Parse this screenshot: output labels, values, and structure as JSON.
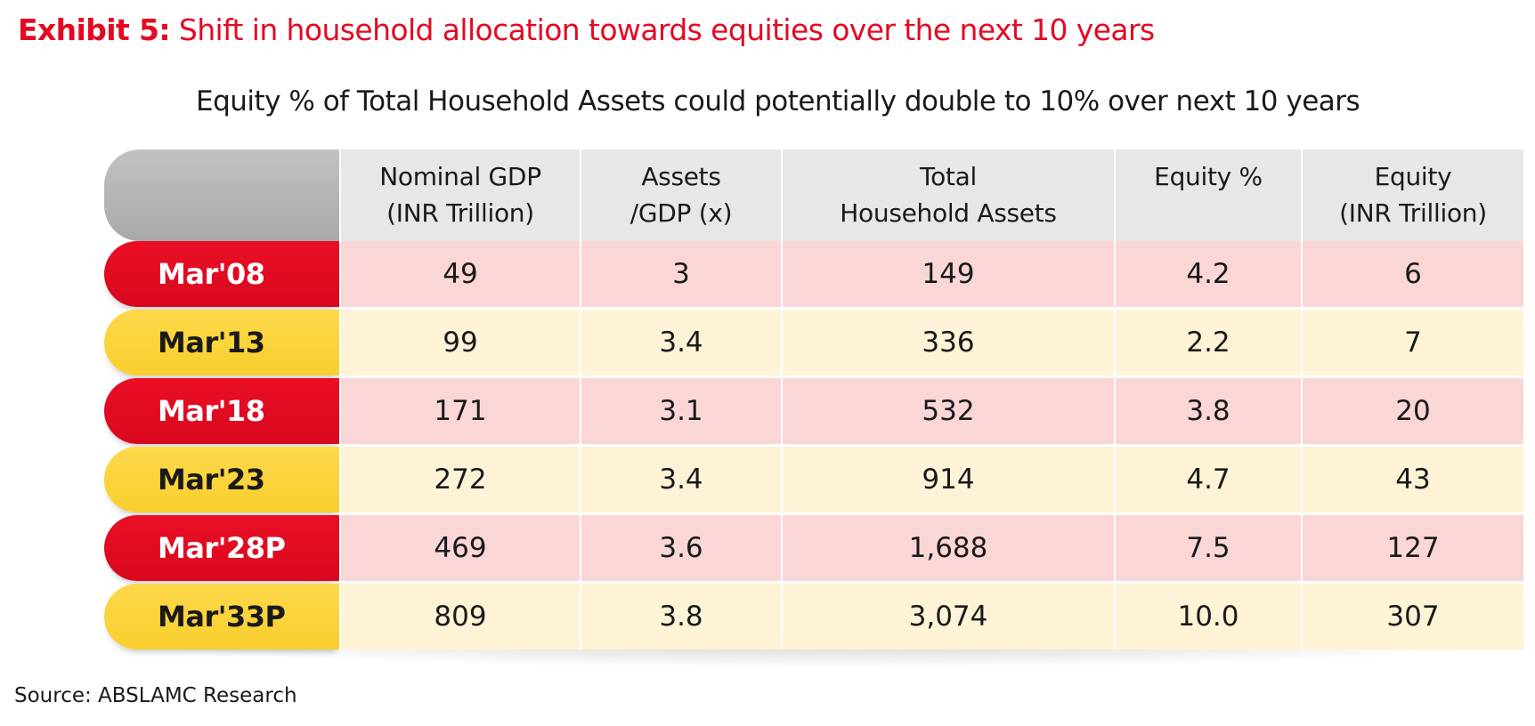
{
  "exhibit": {
    "lead": "Exhibit 5:",
    "title": " Shift in household allocation towards equities over the next 10 years"
  },
  "source": "Source: ABSLAMC Research",
  "colors": {
    "accent_red": "#e30a22",
    "row_red": "#fbd6d7",
    "row_yellow": "#fef3d6",
    "label_red": "#e30a22",
    "label_yellow": "#fdd84a",
    "header_gray": "#e7e7e7"
  },
  "chart_data": {
    "type": "table",
    "title": "Equity % of Total Household Assets could potentially double to 10% over next 10 years",
    "columns": [
      {
        "line1": "Nominal GDP",
        "line2": "(INR Trillion)"
      },
      {
        "line1": "Assets",
        "line2": "/GDP (x)"
      },
      {
        "line1": "Total",
        "line2": "Household Assets"
      },
      {
        "line1": "Equity %",
        "line2": ""
      },
      {
        "line1": "Equity",
        "line2": "(INR Trillion)"
      }
    ],
    "rows": [
      {
        "label": "Mar'08",
        "style": "red",
        "values": [
          "49",
          "3",
          "149",
          "4.2",
          "6"
        ]
      },
      {
        "label": "Mar'13",
        "style": "yellow",
        "values": [
          "99",
          "3.4",
          "336",
          "2.2",
          "7"
        ]
      },
      {
        "label": "Mar'18",
        "style": "red",
        "values": [
          "171",
          "3.1",
          "532",
          "3.8",
          "20"
        ]
      },
      {
        "label": "Mar'23",
        "style": "yellow",
        "values": [
          "272",
          "3.4",
          "914",
          "4.7",
          "43"
        ]
      },
      {
        "label": "Mar'28P",
        "style": "red",
        "values": [
          "469",
          "3.6",
          "1,688",
          "7.5",
          "127"
        ]
      },
      {
        "label": "Mar'33P",
        "style": "yellow",
        "values": [
          "809",
          "3.8",
          "3,074",
          "10.0",
          "307"
        ]
      }
    ]
  }
}
